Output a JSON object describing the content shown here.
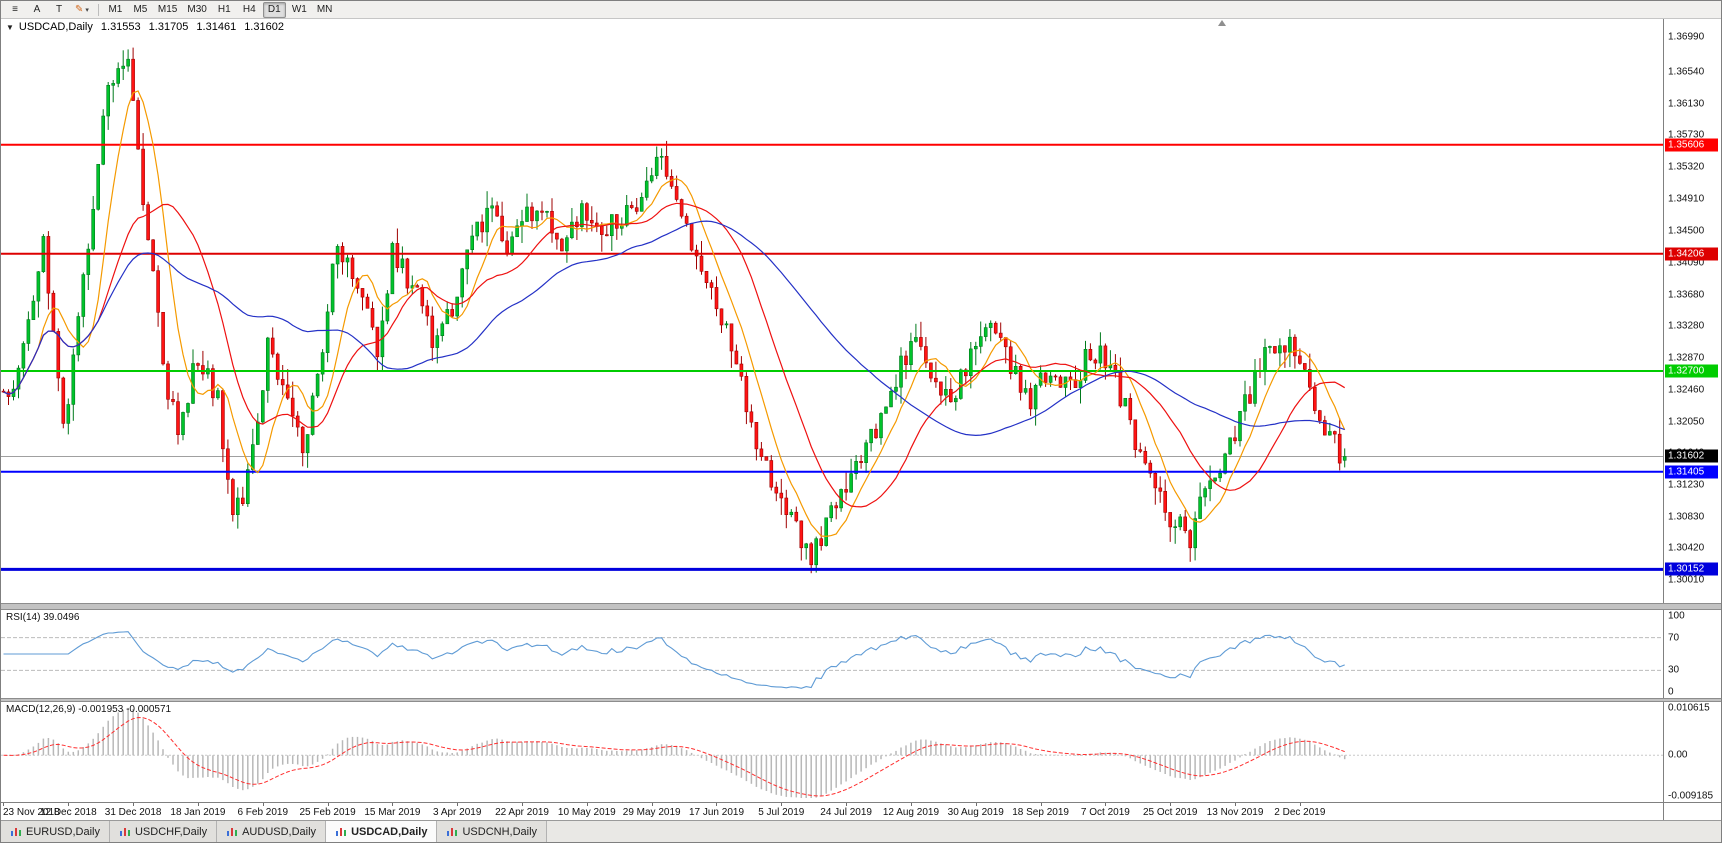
{
  "toolbar": {
    "tools": [
      {
        "name": "objects-list",
        "glyph": "≡"
      },
      {
        "name": "text-tool",
        "glyph": "A"
      },
      {
        "name": "label-tool",
        "glyph": "T"
      },
      {
        "name": "crayon-tool",
        "glyph": "✎",
        "dropdown": "▾"
      }
    ],
    "timeframes": [
      {
        "label": "M1"
      },
      {
        "label": "M5"
      },
      {
        "label": "M15"
      },
      {
        "label": "M30"
      },
      {
        "label": "H1"
      },
      {
        "label": "H4"
      },
      {
        "label": "D1",
        "active": true
      },
      {
        "label": "W1"
      },
      {
        "label": "MN"
      }
    ]
  },
  "symbol_header": {
    "marker": "▼",
    "title": "USDCAD,Daily",
    "open": "1.31553",
    "high": "1.31705",
    "low": "1.31461",
    "close": "1.31602"
  },
  "price_axis": {
    "labels": [
      "1.36990",
      "1.36540",
      "1.36130",
      "1.35730",
      "1.35320",
      "1.34910",
      "1.34500",
      "1.34090",
      "1.33680",
      "1.33280",
      "1.32870",
      "1.32460",
      "1.32050",
      "1.31640",
      "1.31230",
      "1.30830",
      "1.30420",
      "1.30010"
    ],
    "max": 1.3722,
    "min": 1.2972
  },
  "levels": [
    {
      "label": "1.35606",
      "value": 1.35606,
      "color": "#ff0000",
      "width": 2
    },
    {
      "label": "1.34206",
      "value": 1.34206,
      "color": "#dd0000",
      "width": 2
    },
    {
      "label": "1.32700",
      "value": 1.327,
      "color": "#00cc00",
      "width": 2
    },
    {
      "label": "1.31405",
      "value": 1.31405,
      "color": "#0000ff",
      "width": 2
    },
    {
      "label": "1.30152",
      "value": 1.30152,
      "color": "#0000dd",
      "width": 3
    }
  ],
  "current_price": {
    "label": "1.31602",
    "value": 1.31602,
    "line_color": "#a0a0a0",
    "badge_color": "#000000"
  },
  "rsi": {
    "label": "RSI(14) 39.0496",
    "period": 14,
    "value": 39.0496,
    "axis_labels": [
      "100",
      "70",
      "30",
      "0"
    ],
    "guide_levels": [
      70,
      30
    ],
    "line_color": "#5f9bd5"
  },
  "macd": {
    "label": "MACD(12,26,9) -0.001953 -0.000571",
    "fast": 12,
    "slow": 26,
    "signal": 9,
    "macd_value": -0.001953,
    "signal_value": -0.000571,
    "axis_labels": [
      "0.010615",
      "0.00",
      "-0.009185"
    ],
    "max": 0.010615,
    "min": -0.009185,
    "histogram_color": "#b8b8b8",
    "signal_color": "#ff3030"
  },
  "date_axis": {
    "labels": [
      "23 Nov 2018",
      "12 Dec 2018",
      "31 Dec 2018",
      "18 Jan 2019",
      "6 Feb 2019",
      "25 Feb 2019",
      "15 Mar 2019",
      "3 Apr 2019",
      "22 Apr 2019",
      "10 May 2019",
      "29 May 2019",
      "17 Jun 2019",
      "5 Jul 2019",
      "24 Jul 2019",
      "12 Aug 2019",
      "30 Aug 2019",
      "18 Sep 2019",
      "7 Oct 2019",
      "25 Oct 2019",
      "13 Nov 2019",
      "2 Dec 2019"
    ]
  },
  "tabs": [
    {
      "label": "EURUSD,Daily"
    },
    {
      "label": "USDCHF,Daily"
    },
    {
      "label": "AUDUSD,Daily"
    },
    {
      "label": "USDCAD,Daily",
      "active": true
    },
    {
      "label": "USDCNH,Daily"
    }
  ],
  "chart_data": {
    "type": "candlestick",
    "symbol": "USDCAD",
    "timeframe": "D1",
    "title": "USDCAD,Daily",
    "last_quote": {
      "open": 1.31553,
      "high": 1.31705,
      "low": 1.31461,
      "close": 1.31602
    },
    "bars": 270,
    "visible_fraction": 0.81,
    "seed": 1337,
    "close_noise": 0.0016,
    "wick_extra": 0.0022,
    "ylim": [
      1.2972,
      1.3722
    ],
    "price_path_anchors": [
      [
        0.0,
        1.3235
      ],
      [
        0.007,
        1.3242
      ],
      [
        0.03,
        1.343
      ],
      [
        0.046,
        1.3192
      ],
      [
        0.078,
        1.3638
      ],
      [
        0.093,
        1.3655
      ],
      [
        0.104,
        1.35
      ],
      [
        0.119,
        1.328
      ],
      [
        0.13,
        1.3185
      ],
      [
        0.145,
        1.329
      ],
      [
        0.16,
        1.3232
      ],
      [
        0.171,
        1.3082
      ],
      [
        0.182,
        1.313
      ],
      [
        0.197,
        1.33
      ],
      [
        0.212,
        1.3222
      ],
      [
        0.223,
        1.3172
      ],
      [
        0.238,
        1.33
      ],
      [
        0.249,
        1.3438
      ],
      [
        0.264,
        1.3378
      ],
      [
        0.279,
        1.3292
      ],
      [
        0.29,
        1.3428
      ],
      [
        0.305,
        1.3378
      ],
      [
        0.32,
        1.331
      ],
      [
        0.335,
        1.3352
      ],
      [
        0.349,
        1.3438
      ],
      [
        0.364,
        1.3478
      ],
      [
        0.376,
        1.342
      ],
      [
        0.387,
        1.3468
      ],
      [
        0.401,
        1.348
      ],
      [
        0.416,
        1.3432
      ],
      [
        0.431,
        1.3478
      ],
      [
        0.446,
        1.345
      ],
      [
        0.461,
        1.3462
      ],
      [
        0.476,
        1.35
      ],
      [
        0.491,
        1.3558
      ],
      [
        0.502,
        1.348
      ],
      [
        0.517,
        1.342
      ],
      [
        0.532,
        1.335
      ],
      [
        0.546,
        1.328
      ],
      [
        0.561,
        1.318
      ],
      [
        0.576,
        1.311
      ],
      [
        0.591,
        1.3062
      ],
      [
        0.602,
        1.3032
      ],
      [
        0.617,
        1.309
      ],
      [
        0.632,
        1.313
      ],
      [
        0.647,
        1.318
      ],
      [
        0.662,
        1.324
      ],
      [
        0.677,
        1.331
      ],
      [
        0.692,
        1.327
      ],
      [
        0.706,
        1.3232
      ],
      [
        0.721,
        1.329
      ],
      [
        0.736,
        1.3332
      ],
      [
        0.751,
        1.327
      ],
      [
        0.766,
        1.323
      ],
      [
        0.781,
        1.328
      ],
      [
        0.796,
        1.3242
      ],
      [
        0.81,
        1.33
      ],
      [
        0.825,
        1.328
      ],
      [
        0.84,
        1.32
      ],
      [
        0.855,
        1.313
      ],
      [
        0.87,
        1.308
      ],
      [
        0.885,
        1.3058
      ],
      [
        0.9,
        1.313
      ],
      [
        0.915,
        1.318
      ],
      [
        0.929,
        1.324
      ],
      [
        0.944,
        1.3312
      ],
      [
        0.959,
        1.33
      ],
      [
        0.974,
        1.3252
      ],
      [
        0.989,
        1.318
      ],
      [
        1.0,
        1.31602
      ]
    ],
    "moving_averages": [
      {
        "period": 8,
        "color": "#f59a00"
      },
      {
        "period": 20,
        "color": "#ee1111"
      },
      {
        "period": 50,
        "color": "#2431c6"
      }
    ],
    "candle_colors": {
      "up_fill": "#00c32c",
      "up_edge": "#00791b",
      "down_fill": "#ff1414",
      "down_edge": "#9f0000"
    },
    "horizontal_levels": [
      1.35606,
      1.34206,
      1.327,
      1.31405,
      1.30152
    ]
  }
}
